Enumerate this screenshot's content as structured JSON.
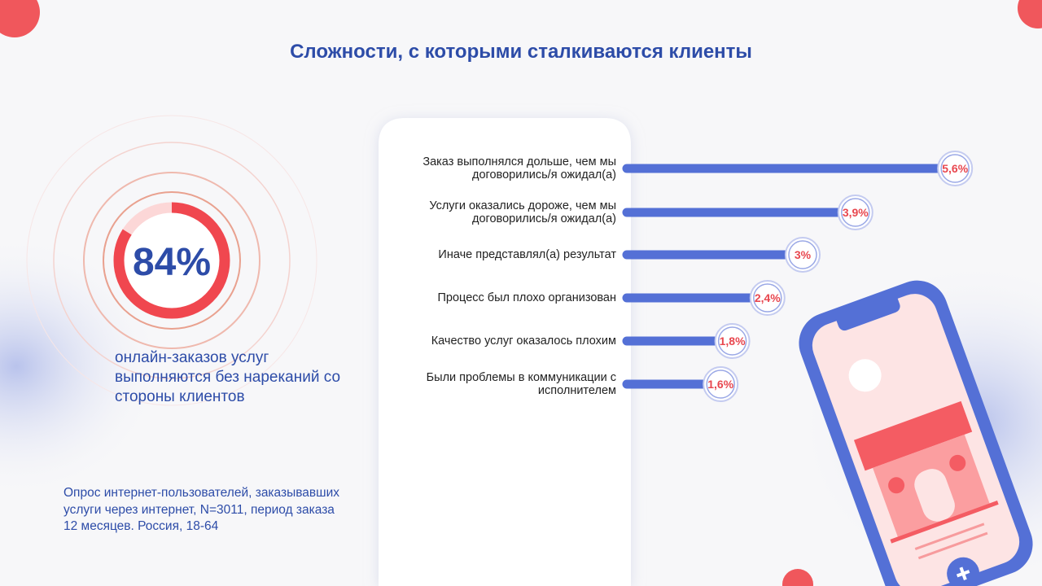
{
  "chart_data": {
    "type": "bar",
    "orientation": "horizontal",
    "title": "Сложности, с которыми сталкиваются клиенты",
    "categories": [
      "Заказ выполнялся дольше, чем мы договорились/я ожидал(а)",
      "Услуги оказались дороже, чем мы договорились/я ожидал(а)",
      "Иначе представлял(а) результат",
      "Процесс был плохо организован",
      "Качество услуг оказалось плохим",
      "Были проблемы в коммуникации с исполнителем"
    ],
    "values": [
      5.6,
      3.9,
      3,
      2.4,
      1.8,
      1.6
    ],
    "value_labels": [
      "5,6%",
      "3,9%",
      "3%",
      "2,4%",
      "1,8%",
      "1,6%"
    ],
    "color": "#5470d6"
  },
  "highlight": {
    "value": 84,
    "label": "84%",
    "caption": "онлайн-заказов услуг выполняются без нареканий со стороны клиентов"
  },
  "footnote": "Опрос интернет-пользователей, заказывавших услуги через интернет, N=3011, период заказа 12 месяцев. Россия, 18-64"
}
